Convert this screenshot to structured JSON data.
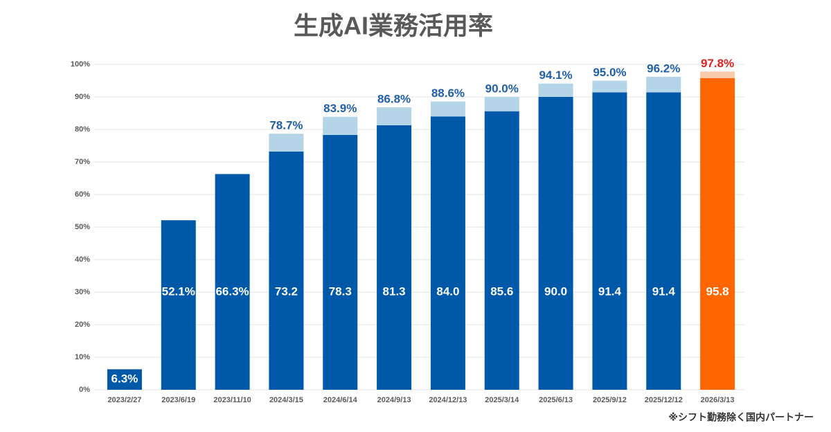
{
  "chart_data": {
    "type": "stacked_bar",
    "title": "生成AI業務活用率",
    "note": "※シフト勤務除く国内パートナー",
    "categories": [
      "2023/2/27",
      "2023/6/19",
      "2023/11/10",
      "2024/3/15",
      "2024/6/14",
      "2024/9/13",
      "2024/12/13",
      "2025/3/14",
      "2025/6/13",
      "2025/9/12",
      "2025/12/12",
      "2026/3/13"
    ],
    "series": [
      {
        "values": [
          6.3,
          52.1,
          66.3,
          73.2,
          78.3,
          81.3,
          84.0,
          85.6,
          90.0,
          91.4,
          91.4,
          95.8
        ],
        "value_labels": [
          "6.3%",
          "52.1%",
          "66.3%",
          "73.2",
          "78.3",
          "81.3",
          "84.0",
          "85.6",
          "90.0",
          "91.4",
          "91.4",
          "95.8"
        ],
        "colors": [
          "#0058a8",
          "#0058a8",
          "#0058a8",
          "#0058a8",
          "#0058a8",
          "#0058a8",
          "#0058a8",
          "#0058a8",
          "#0058a8",
          "#0058a8",
          "#0058a8",
          "#ff6600"
        ]
      },
      {
        "values": [
          null,
          null,
          null,
          5.5,
          5.6,
          5.5,
          4.6,
          4.4,
          4.1,
          3.6,
          4.8,
          2.0
        ],
        "colors": [
          "#b4d4e8",
          "#b4d4e8",
          "#b4d4e8",
          "#b4d4e8",
          "#b4d4e8",
          "#b4d4e8",
          "#b4d4e8",
          "#b4d4e8",
          "#b4d4e8",
          "#b4d4e8",
          "#b4d4e8",
          "#f8cbad"
        ]
      }
    ],
    "totals": {
      "values": [
        null,
        null,
        null,
        78.7,
        83.9,
        86.8,
        88.6,
        90.0,
        94.1,
        95.0,
        96.2,
        97.8
      ],
      "value_labels": [
        null,
        null,
        null,
        "78.7%",
        "83.9%",
        "86.8%",
        "88.6%",
        "90.0%",
        "94.1%",
        "95.0%",
        "96.2%",
        "97.8%"
      ],
      "colors": [
        "#1f5fa8",
        "#1f5fa8",
        "#1f5fa8",
        "#1f5fa8",
        "#1f5fa8",
        "#1f5fa8",
        "#1f5fa8",
        "#1f5fa8",
        "#1f5fa8",
        "#1f5fa8",
        "#1f5fa8",
        "#e02020"
      ]
    },
    "ylim": [
      0,
      100
    ],
    "yticks": [
      {
        "value": 0,
        "label": "0%"
      },
      {
        "value": 10,
        "label": "10%"
      },
      {
        "value": 20,
        "label": "20%"
      },
      {
        "value": 30,
        "label": "30%"
      },
      {
        "value": 40,
        "label": "40%"
      },
      {
        "value": 50,
        "label": "50%"
      },
      {
        "value": 60,
        "label": "60%"
      },
      {
        "value": 70,
        "label": "70%"
      },
      {
        "value": 80,
        "label": "80%"
      },
      {
        "value": 90,
        "label": "90%"
      },
      {
        "value": 100,
        "label": "100%"
      }
    ],
    "grid": true
  }
}
